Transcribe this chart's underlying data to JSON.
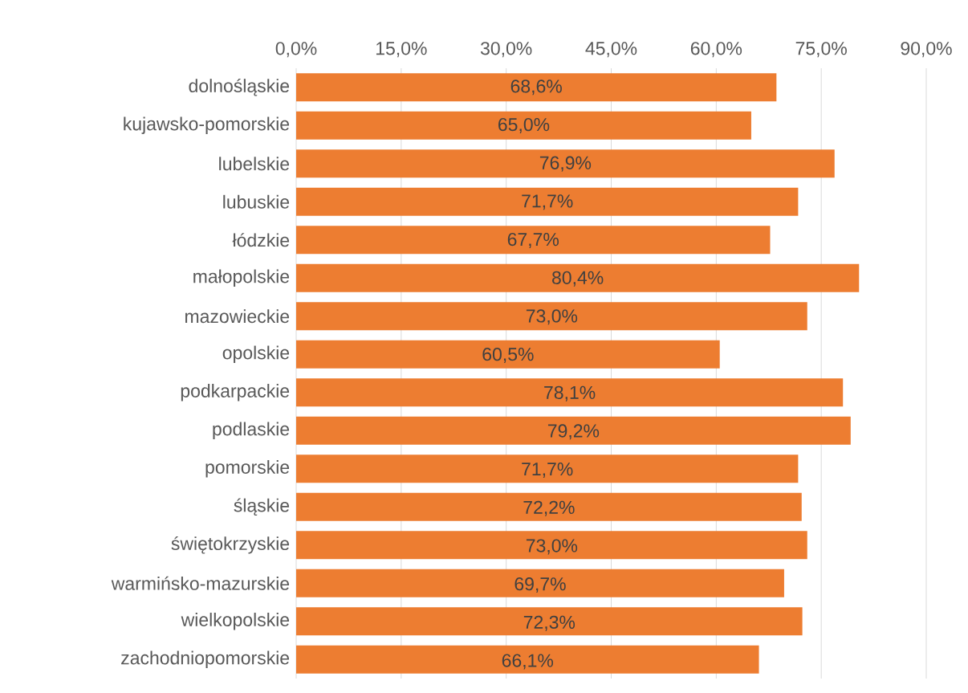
{
  "chart_data": {
    "type": "bar",
    "orientation": "horizontal",
    "color": "#ed7d31",
    "grid": "x",
    "categories": [
      "dolnośląskie",
      "kujawsko-pomorskie",
      "lubelskie",
      "lubuskie",
      "łódzkie",
      "małopolskie",
      "mazowieckie",
      "opolskie",
      "podkarpackie",
      "podlaskie",
      "pomorskie",
      "śląskie",
      "świętokrzyskie",
      "warmińsko-mazurskie",
      "wielkopolskie",
      "zachodniopomorskie"
    ],
    "values": [
      68.6,
      65.0,
      76.9,
      71.7,
      67.7,
      80.4,
      73.0,
      60.5,
      78.1,
      79.2,
      71.7,
      72.2,
      73.0,
      69.7,
      72.3,
      66.1
    ],
    "value_labels": [
      "68,6%",
      "65,0%",
      "76,9%",
      "71,7%",
      "67,7%",
      "80,4%",
      "73,0%",
      "60,5%",
      "78,1%",
      "79,2%",
      "71,7%",
      "72,2%",
      "73,0%",
      "69,7%",
      "72,3%",
      "66,1%"
    ],
    "xlim": [
      0,
      90
    ],
    "xticks": [
      {
        "value": 0,
        "label": "0,0%"
      },
      {
        "value": 15,
        "label": "15,0%"
      },
      {
        "value": 30,
        "label": "30,0%"
      },
      {
        "value": 45,
        "label": "45,0%"
      },
      {
        "value": 60,
        "label": "60,0%"
      },
      {
        "value": 75,
        "label": "75,0%"
      },
      {
        "value": 90,
        "label": "90,0%"
      }
    ]
  }
}
